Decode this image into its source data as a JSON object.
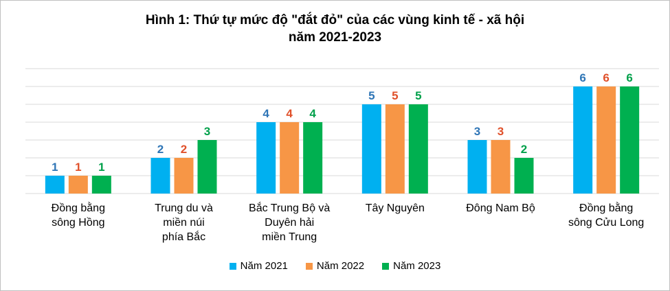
{
  "chart_data": {
    "type": "bar",
    "title": "Hình 1: Thứ tự mức độ \"đắt đỏ\" của các vùng kinh tế - xã hội",
    "subtitle": "năm 2021-2023",
    "categories": [
      [
        "Đồng bằng",
        "sông Hồng"
      ],
      [
        "Trung du và",
        "miền núi",
        "phía Bắc"
      ],
      [
        "Bắc Trung Bộ và",
        "Duyên hải",
        "miền Trung"
      ],
      [
        "Tây Nguyên"
      ],
      [
        "Đông Nam Bộ"
      ],
      [
        "Đồng bằng",
        "sông Cửu Long"
      ]
    ],
    "series": [
      {
        "name": "Năm 2021",
        "color": "#00B0F0",
        "label_color": "#2E75B6",
        "values": [
          1,
          2,
          4,
          5,
          3,
          6
        ]
      },
      {
        "name": "Năm 2022",
        "color": "#F79646",
        "label_color": "#E0502A",
        "values": [
          1,
          2,
          4,
          5,
          3,
          6
        ]
      },
      {
        "name": "Năm 2023",
        "color": "#00B050",
        "label_color": "#00A04A",
        "values": [
          1,
          3,
          4,
          5,
          2,
          6
        ]
      }
    ],
    "ylim": [
      0,
      7
    ],
    "grid": true,
    "legend_position": "bottom"
  }
}
